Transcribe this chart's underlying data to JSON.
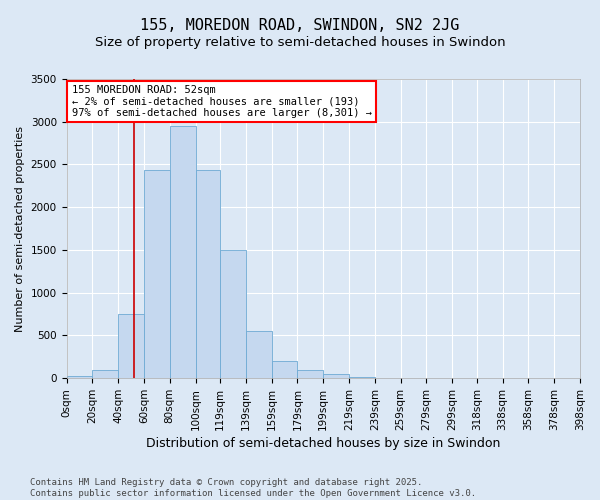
{
  "title1": "155, MOREDON ROAD, SWINDON, SN2 2JG",
  "title2": "Size of property relative to semi-detached houses in Swindon",
  "xlabel": "Distribution of semi-detached houses by size in Swindon",
  "ylabel": "Number of semi-detached properties",
  "bin_labels": [
    "0sqm",
    "20sqm",
    "40sqm",
    "60sqm",
    "80sqm",
    "100sqm",
    "119sqm",
    "139sqm",
    "159sqm",
    "179sqm",
    "199sqm",
    "219sqm",
    "239sqm",
    "259sqm",
    "279sqm",
    "299sqm",
    "318sqm",
    "338sqm",
    "358sqm",
    "378sqm",
    "398sqm"
  ],
  "bin_edges": [
    0,
    20,
    40,
    60,
    80,
    100,
    119,
    139,
    159,
    179,
    199,
    219,
    239,
    259,
    279,
    299,
    318,
    338,
    358,
    378,
    398
  ],
  "bar_heights": [
    30,
    100,
    750,
    2430,
    2950,
    2430,
    1500,
    550,
    200,
    100,
    50,
    10,
    5,
    3,
    3,
    2,
    1,
    0,
    0,
    0
  ],
  "bar_color": "#c5d8ef",
  "bar_edge_color": "#6eaad4",
  "ref_line_x": 52,
  "ref_line_color": "#cc0000",
  "annotation_title": "155 MOREDON ROAD: 52sqm",
  "annotation_line1": "← 2% of semi-detached houses are smaller (193)",
  "annotation_line2": "97% of semi-detached houses are larger (8,301) →",
  "ylim": [
    0,
    3500
  ],
  "yticks": [
    0,
    500,
    1000,
    1500,
    2000,
    2500,
    3000,
    3500
  ],
  "background_color": "#dce8f5",
  "plot_bg_color": "#dce8f5",
  "grid_color": "#ffffff",
  "footer1": "Contains HM Land Registry data © Crown copyright and database right 2025.",
  "footer2": "Contains public sector information licensed under the Open Government Licence v3.0.",
  "title1_fontsize": 11,
  "title2_fontsize": 9.5,
  "xlabel_fontsize": 9,
  "ylabel_fontsize": 8,
  "tick_fontsize": 7.5,
  "footer_fontsize": 6.5,
  "annotation_fontsize": 7.5
}
